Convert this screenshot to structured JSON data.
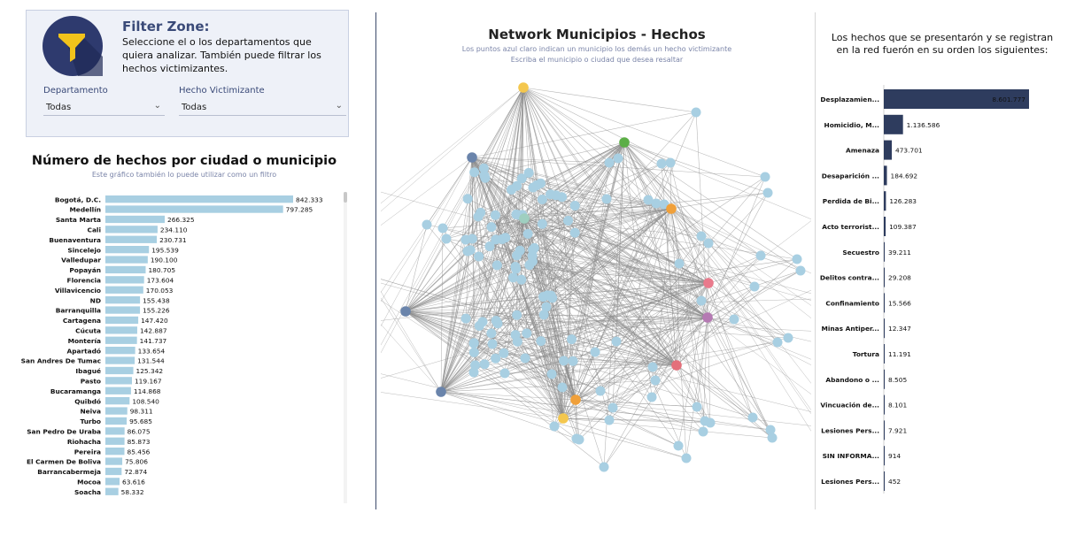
{
  "filter_zone": {
    "title": "Filter Zone:",
    "description": "Seleccione el o los departamentos que quiera analizar. También puede filtrar  los hechos victimizantes.",
    "logo_icon": "filter-funnel-icon",
    "logo_bg": "#2e3a6e",
    "logo_fg": "#f2c31b",
    "departamento": {
      "label": "Departamento",
      "value": "Todas"
    },
    "hecho": {
      "label": "Hecho Victimizante",
      "value": "Todas"
    }
  },
  "left_chart": {
    "title": "Número de hechos por ciudad o municipio",
    "subtitle": "Este gráfico también lo puede utilizar como un filtro"
  },
  "network": {
    "title": "Network Municipios - Hechos",
    "subtitle1": "Los puntos azul claro indican un municipio los demás un hecho victimizante",
    "subtitle2": "Escriba el municipio o ciudad que desea resaltar",
    "municipio_color": "#a8cfe2",
    "edge_color": "#8c8c8c",
    "hecho_colors": [
      "#f4c74e",
      "#5cae47",
      "#6a84ab",
      "#f0a03a",
      "#e97a8c",
      "#b57ab3",
      "#e46f7a",
      "#f0a03a",
      "#f4c74e",
      "#6a84ab",
      "#6a84ab",
      "#9fcfc0"
    ]
  },
  "right_chart": {
    "title_line1": "Los hechos que se presentarón y se registran",
    "title_line2": "en la red fuerón en su orden los siguientes:"
  },
  "chart_data": [
    {
      "type": "bar",
      "orientation": "horizontal",
      "title": "Número de hechos por ciudad o municipio",
      "color": "#a8cfe2",
      "categories": [
        "Bogotá, D.C.",
        "Medellín",
        "Santa Marta",
        "Cali",
        "Buenaventura",
        "Sincelejo",
        "Valledupar",
        "Popayán",
        "Florencia",
        "Villavicencio",
        "ND",
        "Barranquilla",
        "Cartagena",
        "Cúcuta",
        "Montería",
        "Apartadó",
        "San Andres De Tumac",
        "Ibagué",
        "Pasto",
        "Bucaramanga",
        "Quibdó",
        "Neiva",
        "Turbo",
        "San Pedro De Uraba",
        "Riohacha",
        "Pereira",
        "El Carmen De Boliva",
        "Barrancabermeja",
        "Mocoa",
        "Soacha"
      ],
      "values": [
        842333,
        797285,
        266325,
        234110,
        230731,
        195539,
        190100,
        180705,
        173604,
        170053,
        155438,
        155226,
        147420,
        142887,
        141737,
        133654,
        131544,
        125342,
        119167,
        114868,
        108540,
        98311,
        95685,
        86075,
        85873,
        85456,
        75806,
        72874,
        63616,
        58332
      ],
      "labels": [
        "842.333",
        "797.285",
        "266.325",
        "234.110",
        "230.731",
        "195.539",
        "190.100",
        "180.705",
        "173.604",
        "170.053",
        "155.438",
        "155.226",
        "147.420",
        "142.887",
        "141.737",
        "133.654",
        "131.544",
        "125.342",
        "119.167",
        "114.868",
        "108.540",
        "98.311",
        "95.685",
        "86.075",
        "85.873",
        "85.456",
        "75.806",
        "72.874",
        "63.616",
        "58.332"
      ]
    },
    {
      "type": "bar",
      "orientation": "horizontal",
      "color": "#2e3c5e",
      "categories": [
        "Desplazamien...",
        "Homicidio, M...",
        "Amenaza",
        "Desaparición ...",
        "Perdida de Bi...",
        "Acto terrorist...",
        "Secuestro",
        "Delitos contra...",
        "Confinamiento",
        "Minas Antiper...",
        "Tortura",
        "Abandono o ...",
        "Vincuación de...",
        "Lesiones Pers...",
        "SIN INFORMA...",
        "Lesiones Pers..."
      ],
      "values": [
        8601777,
        1136586,
        473701,
        184692,
        126283,
        109387,
        39211,
        29208,
        15566,
        12347,
        11191,
        8505,
        8101,
        7921,
        914,
        452
      ],
      "labels": [
        "8.601.777",
        "1.136.586",
        "473.701",
        "184.692",
        "126.283",
        "109.387",
        "39.211",
        "29.208",
        "15.566",
        "12.347",
        "11.191",
        "8.505",
        "8.101",
        "7.921",
        "914",
        "452"
      ]
    }
  ]
}
